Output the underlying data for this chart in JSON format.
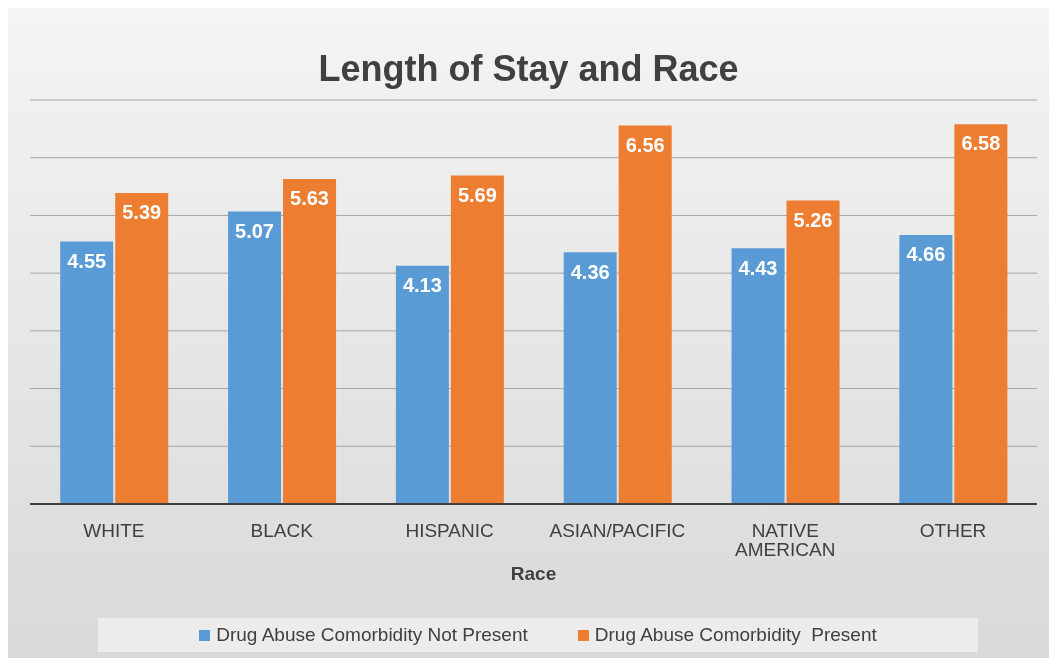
{
  "chart_data": {
    "type": "bar",
    "title": "Length of Stay and Race",
    "xlabel": "Race",
    "categories": [
      "WHITE",
      "BLACK",
      "HISPANIC",
      "ASIAN/PACIFIC",
      "NATIVE AMERICAN",
      "OTHER"
    ],
    "series": [
      {
        "name": "Drug Abuse Comorbidity Not Present",
        "color": "#5b9bd5",
        "values": [
          4.55,
          5.07,
          4.13,
          4.36,
          4.43,
          4.66
        ]
      },
      {
        "name": "Drug Abuse Comorbidity  Present",
        "color": "#ed7d31",
        "values": [
          5.39,
          5.63,
          5.69,
          6.56,
          5.26,
          6.58
        ]
      }
    ],
    "ylim": [
      0,
      7
    ],
    "tick_labels": "x",
    "grid": "y",
    "legend": "bottom",
    "data_labels": true
  }
}
